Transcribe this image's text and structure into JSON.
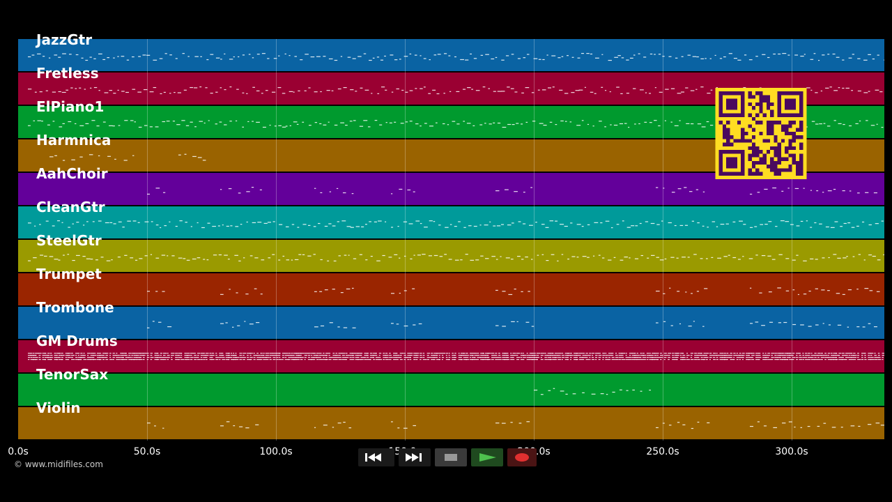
{
  "tracks": [
    {
      "name": "JazzGtr",
      "color": "#0a63a3",
      "pattern": "dense"
    },
    {
      "name": "Fretless",
      "color": "#9a0032",
      "pattern": "dense"
    },
    {
      "name": "ElPiano1",
      "color": "#009a2e",
      "pattern": "dense"
    },
    {
      "name": "Harmnica",
      "color": "#9a6300",
      "pattern": "sparse-early"
    },
    {
      "name": "AahChoir",
      "color": "#63009a",
      "pattern": "sparse"
    },
    {
      "name": "CleanGtr",
      "color": "#009a9a",
      "pattern": "dense"
    },
    {
      "name": "SteelGtr",
      "color": "#9a9a00",
      "pattern": "dense"
    },
    {
      "name": "Trumpet",
      "color": "#9a2500",
      "pattern": "sparse"
    },
    {
      "name": "Trombone",
      "color": "#0a63a3",
      "pattern": "sparse"
    },
    {
      "name": "GM Drums",
      "color": "#9a0032",
      "pattern": "drums"
    },
    {
      "name": "TenorSax",
      "color": "#009a2e",
      "pattern": "solo"
    },
    {
      "name": "Violin",
      "color": "#9a6300",
      "pattern": "sparse"
    }
  ],
  "timeline": {
    "ticks": [
      "0.0s",
      "50.0s",
      "100.0s",
      "150.0s",
      "200.0s",
      "250.0s",
      "300.0s"
    ],
    "duration_seconds": 336
  },
  "copyright": "© www.midifiles.com",
  "transport": {
    "rewind": "rewind-icon",
    "fast_forward": "fast-forward-icon",
    "stop": "stop-icon",
    "play": "play-icon",
    "record": "record-icon"
  },
  "qr_colors": {
    "fg": "#4a0a5e",
    "bg": "#ffdd22"
  }
}
